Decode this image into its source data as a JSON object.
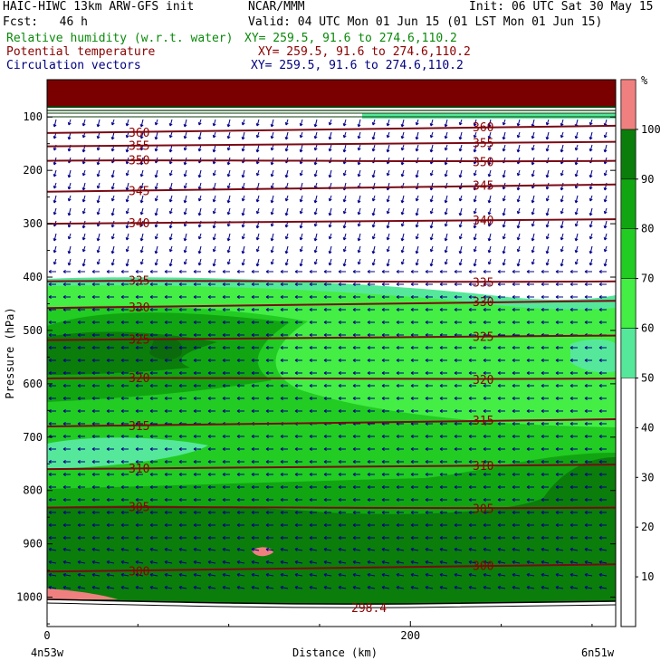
{
  "header": {
    "line1_left": "HAIC-HIWC 13km ARW-GFS init",
    "line1_mid": "NCAR/MMM",
    "line1_right": "Init: 06 UTC Sat 30 May 15",
    "line2_left": "Fcst:   46 h",
    "line2_right": "Valid: 04 UTC Mon 01 Jun 15 (01 LST Mon 01 Jun 15)",
    "fields": [
      {
        "name": "Relative humidity (w.r.t. water)",
        "xy": "XY= 259.5, 91.6 to 274.6,110.2",
        "color": "#0a8a0a"
      },
      {
        "name": "Potential temperature",
        "xy": "XY= 259.5, 91.6 to 274.6,110.2",
        "color": "#8b0000"
      },
      {
        "name": "Circulation vectors",
        "xy": "XY= 259.5, 91.6 to 274.6,110.2",
        "color": "#000080"
      }
    ]
  },
  "chart_data": {
    "type": "cross-section",
    "xlabel": "Distance (km)",
    "ylabel": "Pressure (hPa)",
    "x_ticks": [
      0,
      200
    ],
    "x_range": [
      0,
      313
    ],
    "y_ticks": [
      100,
      200,
      300,
      400,
      500,
      600,
      700,
      800,
      900,
      1000
    ],
    "y_range": [
      1055,
      30
    ],
    "x_end_labels": [
      "4n53w",
      "6n51w"
    ],
    "colorbar": {
      "unit": "%",
      "ticks": [
        10,
        20,
        30,
        40,
        50,
        60,
        70,
        80,
        90,
        100
      ],
      "bands": [
        {
          "min": 50,
          "max": 60,
          "color": "#55e89a"
        },
        {
          "min": 60,
          "max": 70,
          "color": "#44ee44"
        },
        {
          "min": 70,
          "max": 80,
          "color": "#22cc22"
        },
        {
          "min": 80,
          "max": 90,
          "color": "#11a611"
        },
        {
          "min": 90,
          "max": 100,
          "color": "#0b7d0b"
        },
        {
          "min": 100,
          "max": 110,
          "color": "#f08080"
        }
      ]
    },
    "theta_contours": [
      {
        "label": "360",
        "p": 130
      },
      {
        "label": "355",
        "p": 155
      },
      {
        "label": "350",
        "p": 182
      },
      {
        "label": "345",
        "p": 240
      },
      {
        "label": "340",
        "p": 300
      },
      {
        "label": "335",
        "p": 408
      },
      {
        "label": "330",
        "p": 458
      },
      {
        "label": "325",
        "p": 518
      },
      {
        "label": "320",
        "p": 590
      },
      {
        "label": "315",
        "p": 680
      },
      {
        "label": "310",
        "p": 760
      },
      {
        "label": "305",
        "p": 832
      },
      {
        "label": "300",
        "p": 952
      }
    ],
    "surface_label": "298.4"
  },
  "colors": {
    "top_mask": "#7a0000",
    "contour": "#7a0a14",
    "vector": "#00008b",
    "bg": "#ffffff"
  }
}
